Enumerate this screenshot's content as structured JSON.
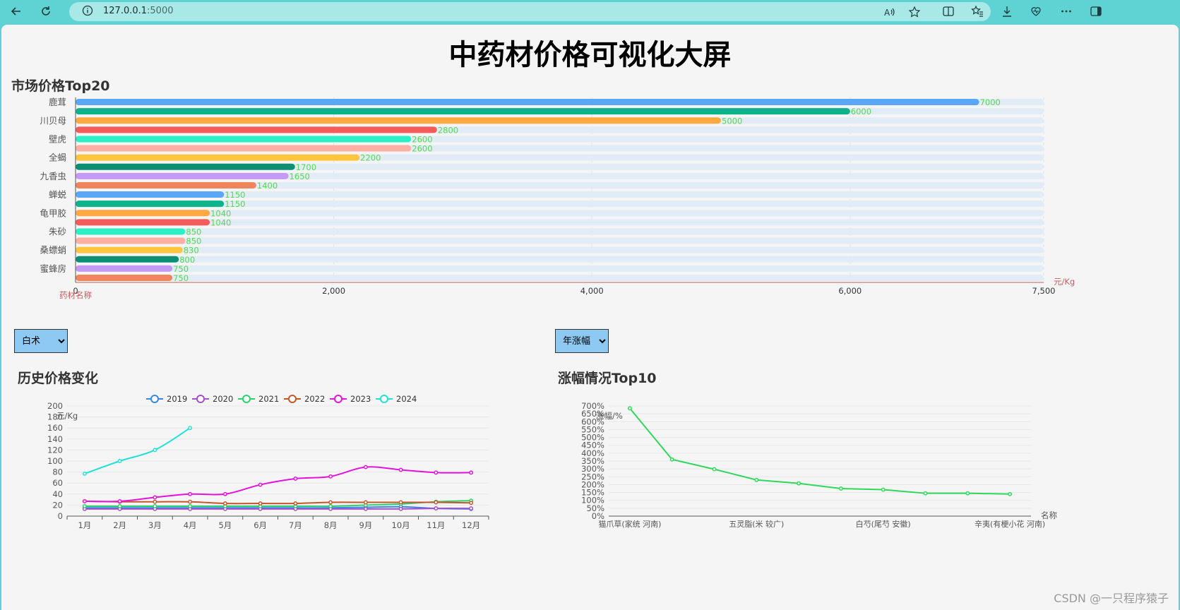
{
  "browser": {
    "url_host": "127.0.0.1",
    "url_port": ":5000"
  },
  "page": {
    "title": "中药材价格可视化大屏",
    "watermark": "CSDN @一只程序猿子"
  },
  "colors": {
    "palette": [
      "#5aa7f5",
      "#0cb38a",
      "#ffa940",
      "#f45b5b",
      "#2cf0c5",
      "#ffb0a3",
      "#ffc53d",
      "#0e8f74",
      "#c49af5",
      "#f0845c"
    ],
    "bar_label": "#52d852",
    "axis_name": "#c45c5c"
  },
  "top_select": "白术",
  "growth_select": "年涨幅",
  "chart_data": [
    {
      "type": "bar",
      "orientation": "horizontal",
      "title": "市场价格Top20",
      "xlabel": "元/Kg",
      "ylabel": "药材名称",
      "xlim": [
        0,
        7500
      ],
      "xticks": [
        "0",
        "2,000",
        "4,000",
        "6,000",
        "7,500"
      ],
      "xtick_values": [
        0,
        2000,
        4000,
        6000,
        7500
      ],
      "categories": [
        "鹿茸",
        "",
        "川贝母",
        "",
        "壁虎",
        "",
        "全蝎",
        "",
        "九香虫",
        "",
        "蝉蜕",
        "",
        "龟甲胶",
        "",
        "朱砂",
        "",
        "桑螵蛸",
        "",
        "蜜蜂房",
        ""
      ],
      "values": [
        7000,
        6000,
        5000,
        2800,
        2600,
        2600,
        2200,
        1700,
        1650,
        1400,
        1150,
        1150,
        1040,
        1040,
        850,
        850,
        830,
        800,
        750,
        750
      ],
      "grid": true
    },
    {
      "type": "line",
      "title": "历史价格变化",
      "ylabel": "元/Kg",
      "ylim": [
        0,
        200
      ],
      "yticks": [
        "0",
        "20",
        "40",
        "60",
        "80",
        "100",
        "120",
        "140",
        "160",
        "180",
        "200"
      ],
      "categories": [
        "1月",
        "2月",
        "3月",
        "4月",
        "5月",
        "6月",
        "7月",
        "8月",
        "9月",
        "10月",
        "11月",
        "12月"
      ],
      "legend_position": "top",
      "series": [
        {
          "name": "2019",
          "color": "#3a86e8",
          "values": [
            15,
            15,
            15,
            15,
            15,
            15,
            15,
            15,
            16,
            17,
            14,
            13
          ]
        },
        {
          "name": "2020",
          "color": "#a64fc8",
          "values": [
            13,
            13,
            13,
            13,
            13,
            13,
            13,
            13,
            13,
            13,
            14,
            14
          ]
        },
        {
          "name": "2021",
          "color": "#2fcf6e",
          "values": [
            18,
            18,
            18,
            18,
            18,
            18,
            18,
            18,
            20,
            22,
            26,
            28
          ]
        },
        {
          "name": "2022",
          "color": "#c4562a",
          "values": [
            27,
            26,
            26,
            26,
            23,
            23,
            23,
            25,
            25,
            25,
            25,
            24
          ]
        },
        {
          "name": "2023",
          "color": "#e313d9",
          "values": [
            27,
            27,
            34,
            40,
            40,
            57,
            68,
            72,
            89,
            84,
            79,
            79
          ]
        },
        {
          "name": "2024",
          "color": "#21e0d6",
          "values": [
            77,
            100,
            120,
            160,
            null,
            null,
            null,
            null,
            null,
            null,
            null,
            null
          ]
        }
      ]
    },
    {
      "type": "line",
      "title": "涨幅情况Top10",
      "ylabel": "涨幅/%",
      "xlabel": "名称",
      "ylim": [
        0,
        700
      ],
      "yticks": [
        "0%",
        "50%",
        "100%",
        "150%",
        "200%",
        "250%",
        "300%",
        "350%",
        "400%",
        "450%",
        "500%",
        "550%",
        "600%",
        "650%",
        "700%"
      ],
      "categories": [
        "猫爪草(家统 河南)",
        "",
        "",
        "五灵脂(米 较广)",
        "",
        "",
        "白芍(尾芍 安徽)",
        "",
        "",
        "辛夷(有梗小花 河南)"
      ],
      "color": "#2fd85a",
      "values": [
        685,
        360,
        298,
        230,
        208,
        175,
        168,
        145,
        145,
        140
      ]
    }
  ]
}
